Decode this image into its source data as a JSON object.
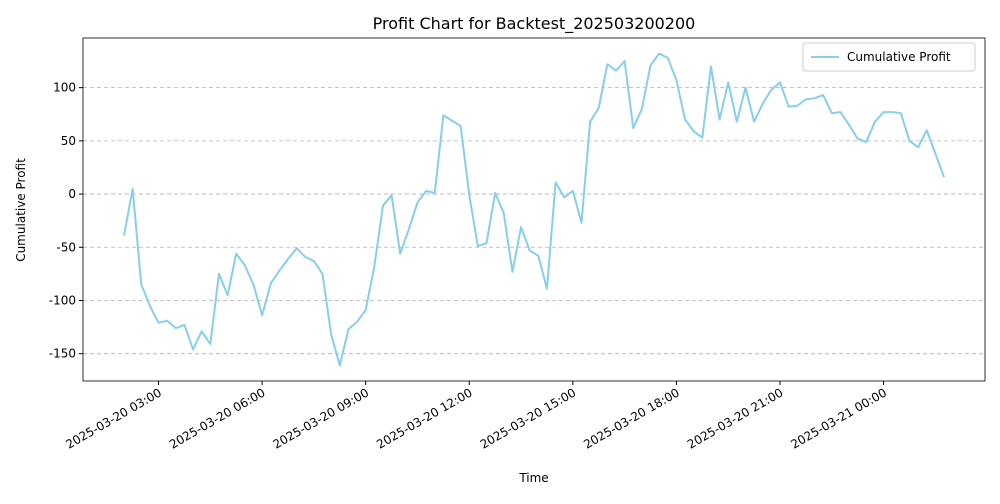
{
  "chart_data": {
    "type": "line",
    "title": "Profit Chart for Backtest_202503200200",
    "x_label": "Time",
    "y_label": "Cumulative Profit",
    "x": [
      "2025-03-20 02:00",
      "2025-03-20 02:15",
      "2025-03-20 02:30",
      "2025-03-20 02:45",
      "2025-03-20 03:00",
      "2025-03-20 03:15",
      "2025-03-20 03:30",
      "2025-03-20 03:45",
      "2025-03-20 04:00",
      "2025-03-20 04:15",
      "2025-03-20 04:30",
      "2025-03-20 04:45",
      "2025-03-20 05:00",
      "2025-03-20 05:15",
      "2025-03-20 05:30",
      "2025-03-20 05:45",
      "2025-03-20 06:00",
      "2025-03-20 06:15",
      "2025-03-20 06:30",
      "2025-03-20 06:45",
      "2025-03-20 07:00",
      "2025-03-20 07:15",
      "2025-03-20 07:30",
      "2025-03-20 07:45",
      "2025-03-20 08:00",
      "2025-03-20 08:15",
      "2025-03-20 08:30",
      "2025-03-20 08:45",
      "2025-03-20 09:00",
      "2025-03-20 09:15",
      "2025-03-20 09:30",
      "2025-03-20 09:45",
      "2025-03-20 10:00",
      "2025-03-20 10:15",
      "2025-03-20 10:30",
      "2025-03-20 10:45",
      "2025-03-20 11:00",
      "2025-03-20 11:15",
      "2025-03-20 11:30",
      "2025-03-20 11:45",
      "2025-03-20 12:00",
      "2025-03-20 12:15",
      "2025-03-20 12:30",
      "2025-03-20 12:45",
      "2025-03-20 13:00",
      "2025-03-20 13:15",
      "2025-03-20 13:30",
      "2025-03-20 13:45",
      "2025-03-20 14:00",
      "2025-03-20 14:15",
      "2025-03-20 14:30",
      "2025-03-20 14:45",
      "2025-03-20 15:00",
      "2025-03-20 15:15",
      "2025-03-20 15:30",
      "2025-03-20 15:45",
      "2025-03-20 16:00",
      "2025-03-20 16:15",
      "2025-03-20 16:30",
      "2025-03-20 16:45",
      "2025-03-20 17:00",
      "2025-03-20 17:15",
      "2025-03-20 17:30",
      "2025-03-20 17:45",
      "2025-03-20 18:00",
      "2025-03-20 18:15",
      "2025-03-20 18:30",
      "2025-03-20 18:45",
      "2025-03-20 19:00",
      "2025-03-20 19:15",
      "2025-03-20 19:30",
      "2025-03-20 19:45",
      "2025-03-20 20:00",
      "2025-03-20 20:15",
      "2025-03-20 20:30",
      "2025-03-20 20:45",
      "2025-03-20 21:00",
      "2025-03-20 21:15",
      "2025-03-20 21:30",
      "2025-03-20 21:45",
      "2025-03-20 22:00",
      "2025-03-20 22:15",
      "2025-03-20 22:30",
      "2025-03-20 22:45",
      "2025-03-20 23:00",
      "2025-03-20 23:15",
      "2025-03-20 23:30",
      "2025-03-20 23:45",
      "2025-03-21 00:00",
      "2025-03-21 00:15",
      "2025-03-21 00:30",
      "2025-03-21 00:45",
      "2025-03-21 01:00",
      "2025-03-21 01:15",
      "2025-03-21 01:30",
      "2025-03-21 01:45"
    ],
    "series": [
      {
        "name": "Cumulative Profit",
        "color": "#87ceeb",
        "values": [
          -39,
          5,
          -85,
          -105,
          -121,
          -119,
          -126,
          -123,
          -146,
          -129,
          -141,
          -75,
          -95,
          -56,
          -67,
          -85,
          -114,
          -84,
          -72,
          -61,
          -51,
          -59,
          -63,
          -75,
          -132,
          -161,
          -127,
          -120,
          -109,
          -68,
          -11,
          -1,
          -56,
          -33,
          -8,
          3,
          1,
          74,
          69,
          64,
          -1,
          -49,
          -46,
          1,
          -18,
          -73,
          -31,
          -53,
          -58,
          -89,
          11,
          -3,
          3,
          -27,
          68,
          81,
          122,
          116,
          125,
          62,
          80,
          121,
          132,
          128,
          107,
          70,
          59,
          53,
          120,
          70,
          105,
          68,
          100,
          68,
          85,
          98,
          105,
          82,
          83,
          89,
          90,
          93,
          76,
          77,
          65,
          52,
          49,
          68,
          77,
          77,
          76,
          50,
          44,
          60,
          38,
          16
        ]
      }
    ],
    "xlim": [
      "2025-03-20 00:48:45",
      "2025-03-21 02:56:15"
    ],
    "xticks": [
      "2025-03-20 03:00",
      "2025-03-20 06:00",
      "2025-03-20 09:00",
      "2025-03-20 12:00",
      "2025-03-20 15:00",
      "2025-03-20 18:00",
      "2025-03-20 21:00",
      "2025-03-21 00:00"
    ],
    "ylim": [
      -175.65,
      146.65
    ],
    "yticks": [
      -150,
      -100,
      -50,
      0,
      50,
      100
    ],
    "grid": true,
    "legend": "upper right"
  }
}
